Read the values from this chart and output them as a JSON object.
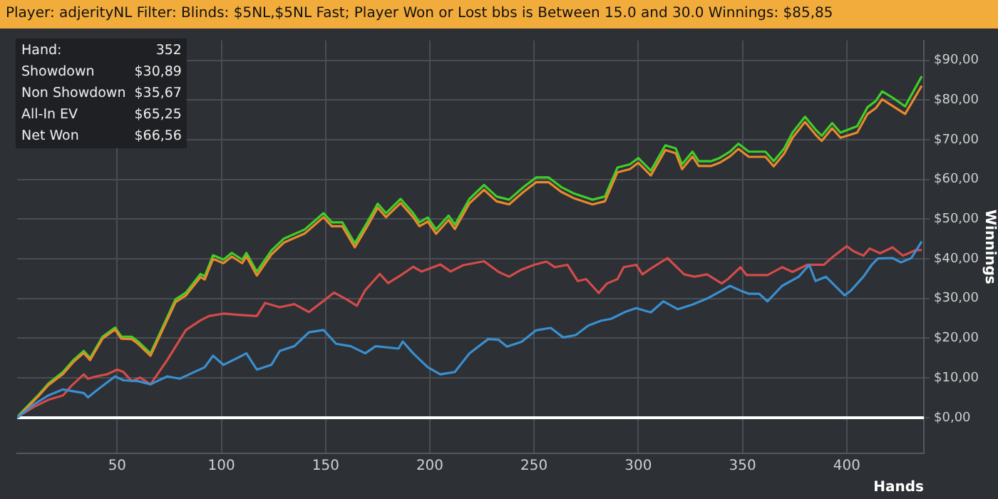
{
  "chart_data": {
    "type": "line",
    "title": "Player: adjerityNL Filter: Blinds: $5NL,$5NL Fast; Player Won or Lost bbs is Between 15.0 and 30.0 Winnings: $85,85",
    "xlabel": "Hands",
    "ylabel": "Winnings",
    "annotations": [
      "Hand:",
      "352",
      "Showdown",
      "$30,89",
      "Non Showdown",
      "$35,67",
      "All-In EV",
      "$65,25",
      "Net Won",
      "$66,56"
    ],
    "xlim": [
      2,
      437
    ],
    "xticks": [
      50,
      100,
      150,
      200,
      250,
      300,
      350,
      400
    ],
    "ylim": [
      -9,
      95
    ],
    "yticks": [
      {
        "value": 0,
        "label": "$0,00"
      },
      {
        "value": 10,
        "label": "$10,00"
      },
      {
        "value": 20,
        "label": "$20,00"
      },
      {
        "value": 30,
        "label": "$30,00"
      },
      {
        "value": 40,
        "label": "$40,00"
      },
      {
        "value": 50,
        "label": "$50,00"
      },
      {
        "value": 60,
        "label": "$60,00"
      },
      {
        "value": 70,
        "label": "$70,00"
      },
      {
        "value": 80,
        "label": "$80,00"
      },
      {
        "value": 90,
        "label": "$90,00"
      }
    ],
    "grid": true,
    "legend": false,
    "marker": "none",
    "line_style": "solid",
    "ref_lines": [
      {
        "axis": "y",
        "value": 0,
        "color": "#ffffff"
      }
    ],
    "series": [
      {
        "color": "#3a8fd0",
        "x": [
          2,
          3,
          10,
          17,
          24,
          34,
          36,
          40,
          49,
          53,
          60,
          66,
          74,
          80,
          87,
          92,
          96,
          101,
          108,
          112,
          117,
          124,
          128,
          135,
          142,
          149,
          155,
          162,
          169,
          174,
          185,
          187,
          192,
          199,
          205,
          212,
          219,
          228,
          233,
          237,
          244,
          251,
          258,
          264,
          270,
          276,
          282,
          287,
          294,
          299,
          306,
          312,
          319,
          326,
          333,
          340,
          344,
          349,
          353,
          358,
          362,
          369,
          377,
          382,
          385,
          390,
          399,
          402,
          408,
          412,
          415,
          422,
          426,
          431,
          436
        ],
        "values": [
          0,
          0.4,
          3.3,
          5.6,
          7.1,
          6.2,
          5.1,
          6.8,
          10.4,
          9.4,
          9.2,
          8.4,
          10.4,
          9.8,
          11.5,
          12.7,
          15.6,
          13.3,
          15.1,
          16.2,
          12.1,
          13.3,
          16.8,
          18,
          21.5,
          22.1,
          18.6,
          18,
          16.2,
          18,
          17.4,
          19.2,
          16.2,
          12.7,
          10.9,
          11.5,
          16.2,
          19.8,
          19.6,
          17.9,
          19.1,
          22,
          22.6,
          20.2,
          20.8,
          23.2,
          24.4,
          24.9,
          26.7,
          27.6,
          26.5,
          29.3,
          27.3,
          28.5,
          30,
          32,
          33.2,
          32,
          31.2,
          31.2,
          29.3,
          33.2,
          35.5,
          38.5,
          34.4,
          35.5,
          30.8,
          32,
          35.5,
          38.5,
          40.1,
          40.2,
          39.1,
          40.2,
          44.4
        ]
      },
      {
        "color": "#d44b4b",
        "x": [
          2,
          3,
          10,
          17,
          24,
          28,
          34,
          36,
          40,
          45,
          50,
          53,
          57,
          61,
          66,
          74,
          83,
          90,
          94,
          101,
          108,
          117,
          121,
          128,
          135,
          142,
          149,
          154,
          160,
          165,
          169,
          176,
          180,
          187,
          192,
          196,
          205,
          210,
          216,
          226,
          233,
          238,
          244,
          250,
          256,
          260,
          266,
          271,
          275,
          281,
          285,
          290,
          293,
          299,
          302,
          307,
          314,
          322,
          327,
          333,
          340,
          343,
          349,
          352,
          362,
          369,
          374,
          381,
          389,
          394,
          400,
          403,
          408,
          411,
          416,
          422,
          427,
          433,
          436
        ],
        "values": [
          0,
          0.4,
          2.7,
          4.5,
          5.6,
          8,
          10.9,
          9.8,
          10.4,
          10.9,
          12.1,
          11.5,
          9.2,
          10.1,
          8.4,
          14.5,
          22.1,
          24.5,
          25.6,
          26.2,
          25.9,
          25.6,
          28.9,
          27.8,
          28.6,
          26.6,
          29.4,
          31.5,
          29.8,
          28.2,
          32.1,
          36.2,
          33.9,
          36.2,
          38,
          36.8,
          38.6,
          36.8,
          38.4,
          39.4,
          36.7,
          35.5,
          37.3,
          38.5,
          39.3,
          37.9,
          38.5,
          34.4,
          34.9,
          31.4,
          33.8,
          34.9,
          37.9,
          38.5,
          36.1,
          37.9,
          40.2,
          36.1,
          35.5,
          36.1,
          33.8,
          34.9,
          37.9,
          35.9,
          35.9,
          37.9,
          36.7,
          38.5,
          38.5,
          40.8,
          43.2,
          42,
          40.8,
          42.6,
          41.4,
          42.9,
          40.8,
          42.2,
          42.2
        ]
      },
      {
        "color": "#e8892c",
        "x": [
          2,
          3,
          12,
          17,
          24,
          29,
          34,
          37,
          43,
          49,
          52,
          57,
          60,
          66,
          78,
          83,
          90,
          92,
          96,
          101,
          105,
          110,
          112,
          117,
          124,
          130,
          140,
          149,
          153,
          158,
          164,
          170,
          175,
          179,
          186,
          192,
          195,
          199,
          203,
          209,
          212,
          219,
          226,
          232,
          238,
          245,
          251,
          257,
          263,
          269,
          278,
          284,
          290,
          296,
          300,
          306,
          313,
          318,
          321,
          326,
          329,
          335,
          339,
          344,
          348,
          353,
          361,
          365,
          370,
          374,
          380,
          385,
          388,
          393,
          397,
          405,
          410,
          414,
          417,
          422,
          428,
          436
        ],
        "values": [
          0,
          0.5,
          5.3,
          8.2,
          11.0,
          14.0,
          16.3,
          14.5,
          19.9,
          22.2,
          19.9,
          19.8,
          18.6,
          15.6,
          29.1,
          30.8,
          35.4,
          34.8,
          40.0,
          38.9,
          40.6,
          38.9,
          40.6,
          35.8,
          41.1,
          44.1,
          46.4,
          50.5,
          48.2,
          48.2,
          42.9,
          48.2,
          52.9,
          50.5,
          54.1,
          50.5,
          48.2,
          49.4,
          46.3,
          49.8,
          47.5,
          54.0,
          57.4,
          54.5,
          53.7,
          56.9,
          59.3,
          59.3,
          56.9,
          55.3,
          53.7,
          54.5,
          61.8,
          62.6,
          64.2,
          61.0,
          67.4,
          66.6,
          62.6,
          65.8,
          63.4,
          63.4,
          64.2,
          65.8,
          67.7,
          65.7,
          65.7,
          63.3,
          66.5,
          70.5,
          74.5,
          71.3,
          69.7,
          72.9,
          70.5,
          71.8,
          76.5,
          78.0,
          80.2,
          78.5,
          76.5,
          83.6
        ]
      },
      {
        "color": "#3ecf2a",
        "x": [
          2,
          3,
          12,
          17,
          24,
          29,
          34,
          37,
          43,
          49,
          52,
          57,
          60,
          66,
          78,
          83,
          90,
          92,
          96,
          101,
          105,
          110,
          112,
          117,
          124,
          130,
          140,
          149,
          153,
          158,
          164,
          170,
          175,
          179,
          186,
          192,
          195,
          199,
          203,
          209,
          212,
          219,
          226,
          232,
          238,
          245,
          251,
          257,
          263,
          269,
          278,
          284,
          290,
          296,
          300,
          306,
          313,
          318,
          321,
          326,
          329,
          335,
          339,
          344,
          348,
          353,
          361,
          365,
          370,
          374,
          380,
          385,
          388,
          393,
          397,
          405,
          410,
          414,
          417,
          422,
          428,
          436
        ],
        "values": [
          0,
          0.7,
          5.6,
          8.6,
          11.5,
          14.5,
          16.8,
          15,
          20.4,
          22.7,
          20.4,
          20.4,
          19.2,
          16.2,
          29.8,
          31.5,
          36.2,
          35.6,
          40.9,
          39.8,
          41.5,
          39.8,
          41.5,
          36.8,
          42.1,
          45.1,
          47.4,
          51.5,
          49.2,
          49.2,
          43.9,
          49.2,
          53.9,
          51.5,
          55.1,
          51.5,
          49.2,
          50.4,
          47.4,
          50.9,
          48.6,
          55.1,
          58.6,
          55.7,
          54.9,
          58.1,
          60.5,
          60.5,
          58.1,
          56.5,
          54.9,
          55.7,
          63,
          63.8,
          65.4,
          62.2,
          68.6,
          67.8,
          63.8,
          67,
          64.6,
          64.6,
          65.4,
          67,
          69,
          67,
          67,
          64.6,
          67.8,
          71.8,
          75.8,
          72.6,
          71,
          74.2,
          71.8,
          73.4,
          78.2,
          79.8,
          82.2,
          80.6,
          78.4,
          86
        ]
      }
    ]
  }
}
